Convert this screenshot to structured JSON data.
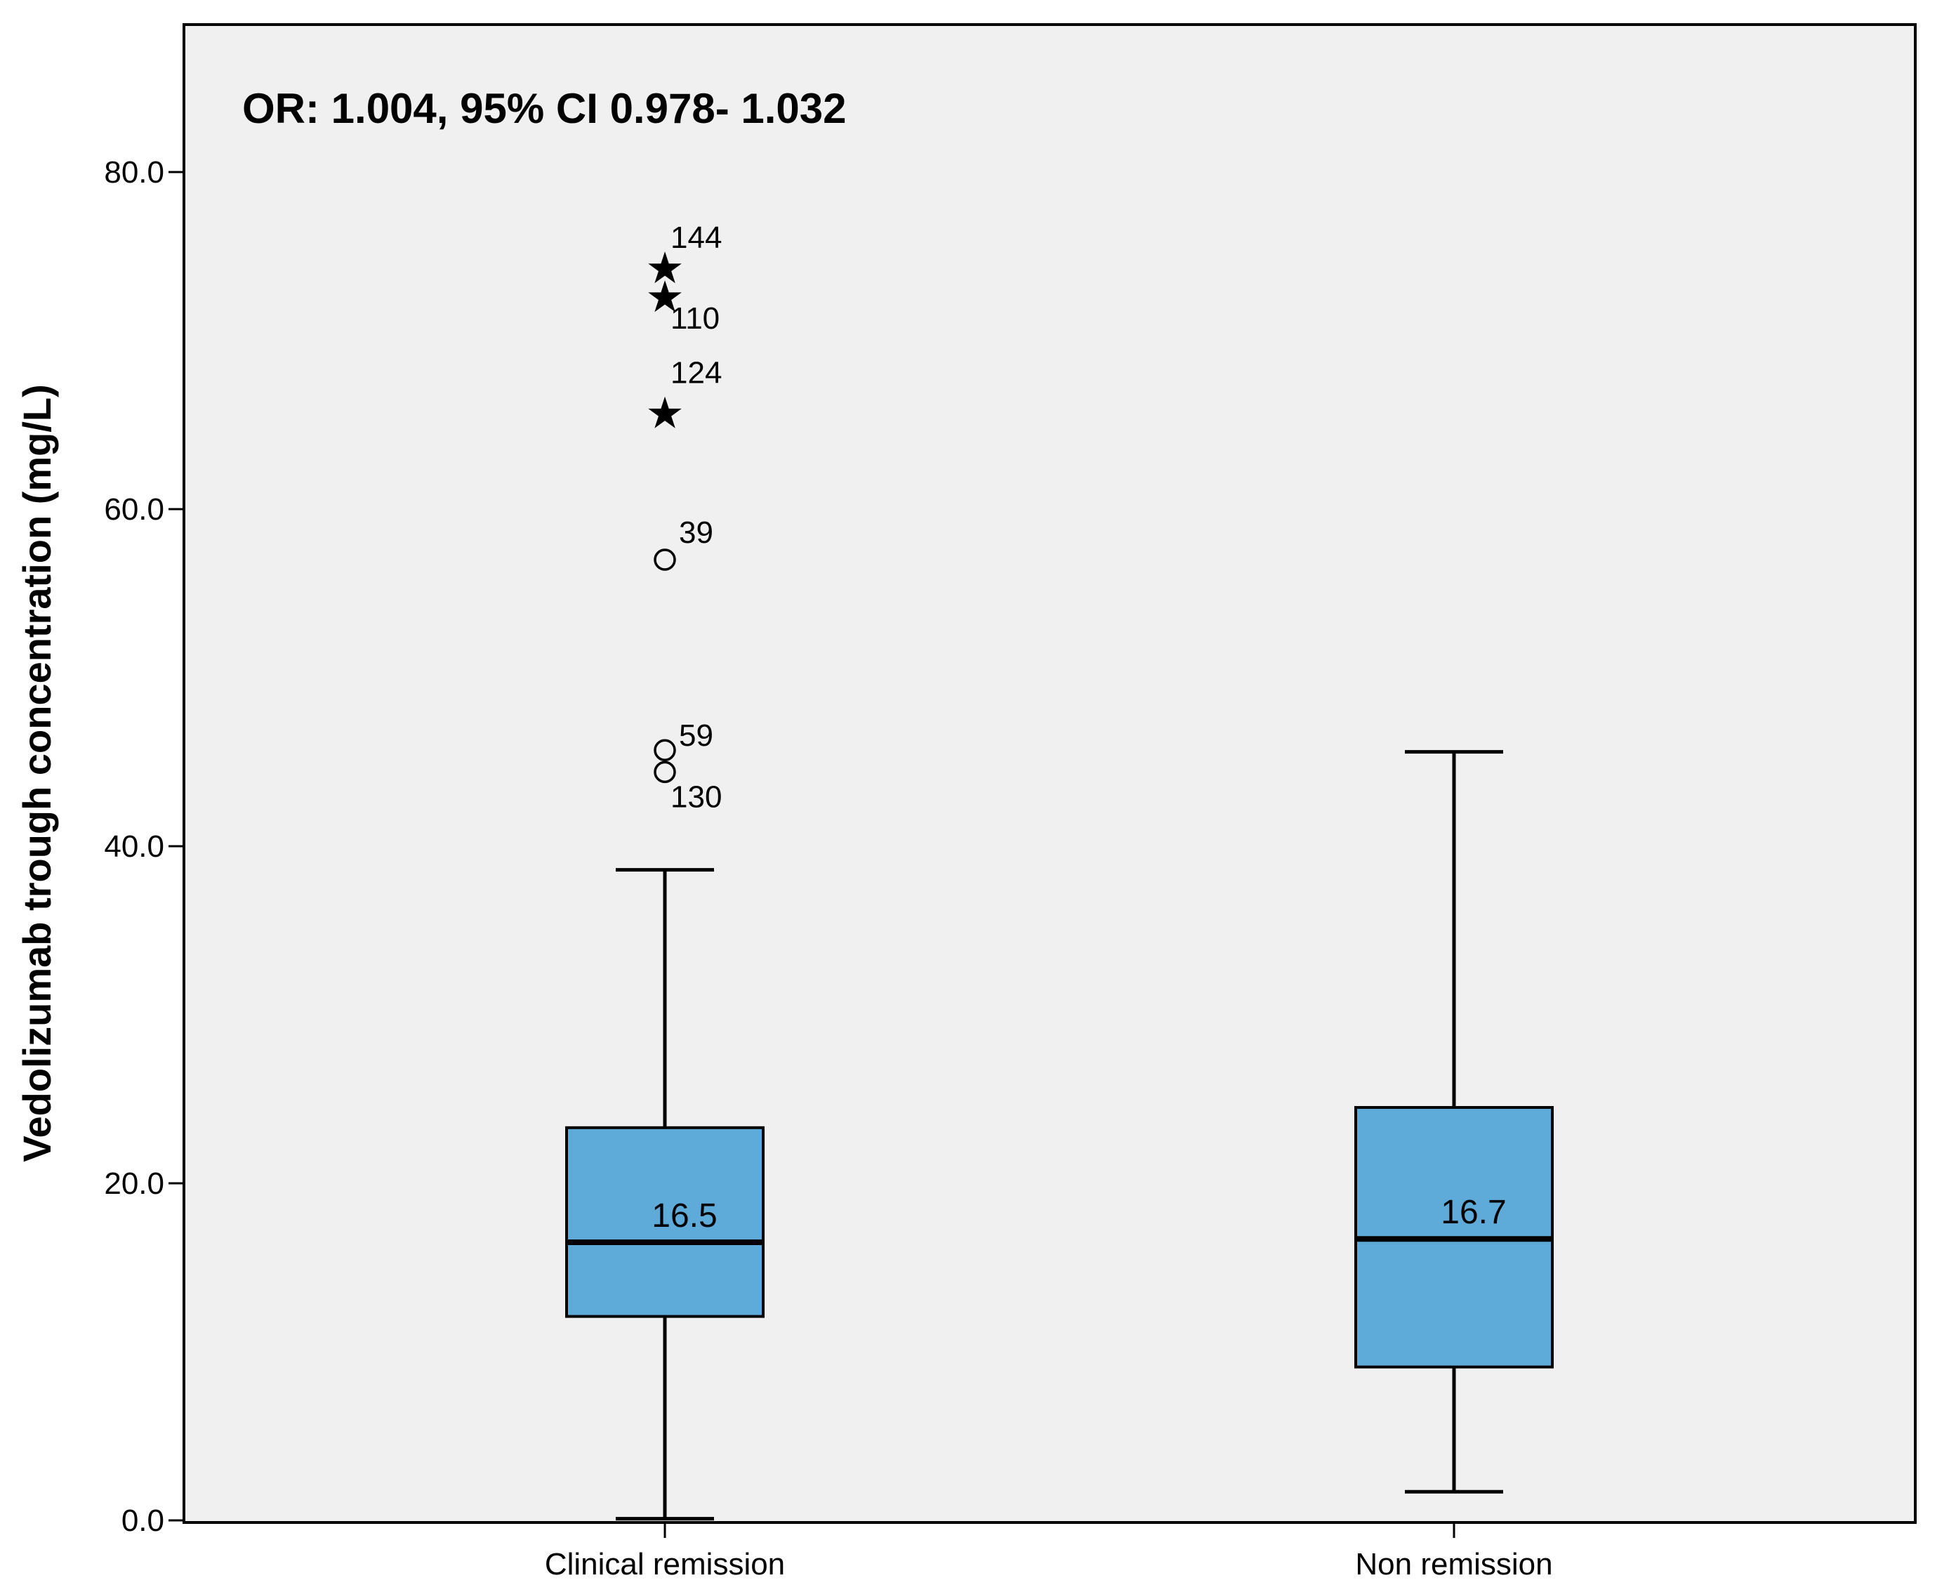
{
  "chart_data": {
    "type": "boxplot",
    "title": "",
    "annotation": "OR: 1.004, 95% CI 0.978- 1.032",
    "ylabel": "Vedolizumab trough concentration (mg/L)",
    "xlabel": "",
    "ylim": [
      0,
      88
    ],
    "yticks": [
      {
        "value": 0,
        "label": "0.0"
      },
      {
        "value": 20,
        "label": "20.0"
      },
      {
        "value": 40,
        "label": "40.0"
      },
      {
        "value": 60,
        "label": "60.0"
      },
      {
        "value": 80,
        "label": "80.0"
      }
    ],
    "grid": false,
    "colors": {
      "box_fill": "#5eaad8",
      "plot_bg": "#f0f0f0",
      "stroke": "#000000"
    },
    "groups": [
      {
        "category": "Clinical remission",
        "whisker_low": 0.1,
        "q1": 12.1,
        "median": 16.5,
        "median_label": "16.5",
        "q3": 23.3,
        "whisker_high": 38.6,
        "outliers": [
          {
            "value": 74.5,
            "marker": "star",
            "label": "144"
          },
          {
            "value": 72.8,
            "marker": "star",
            "label": "110"
          },
          {
            "value": 65.9,
            "marker": "star",
            "label": "124"
          },
          {
            "value": 57.0,
            "marker": "circle",
            "label": "39"
          },
          {
            "value": 45.7,
            "marker": "circle",
            "label": "59"
          },
          {
            "value": 44.4,
            "marker": "circle",
            "label": "130"
          }
        ]
      },
      {
        "category": "Non remission",
        "whisker_low": 1.7,
        "q1": 9.1,
        "median": 16.7,
        "median_label": "16.7",
        "q3": 24.5,
        "whisker_high": 45.6,
        "outliers": []
      }
    ]
  }
}
